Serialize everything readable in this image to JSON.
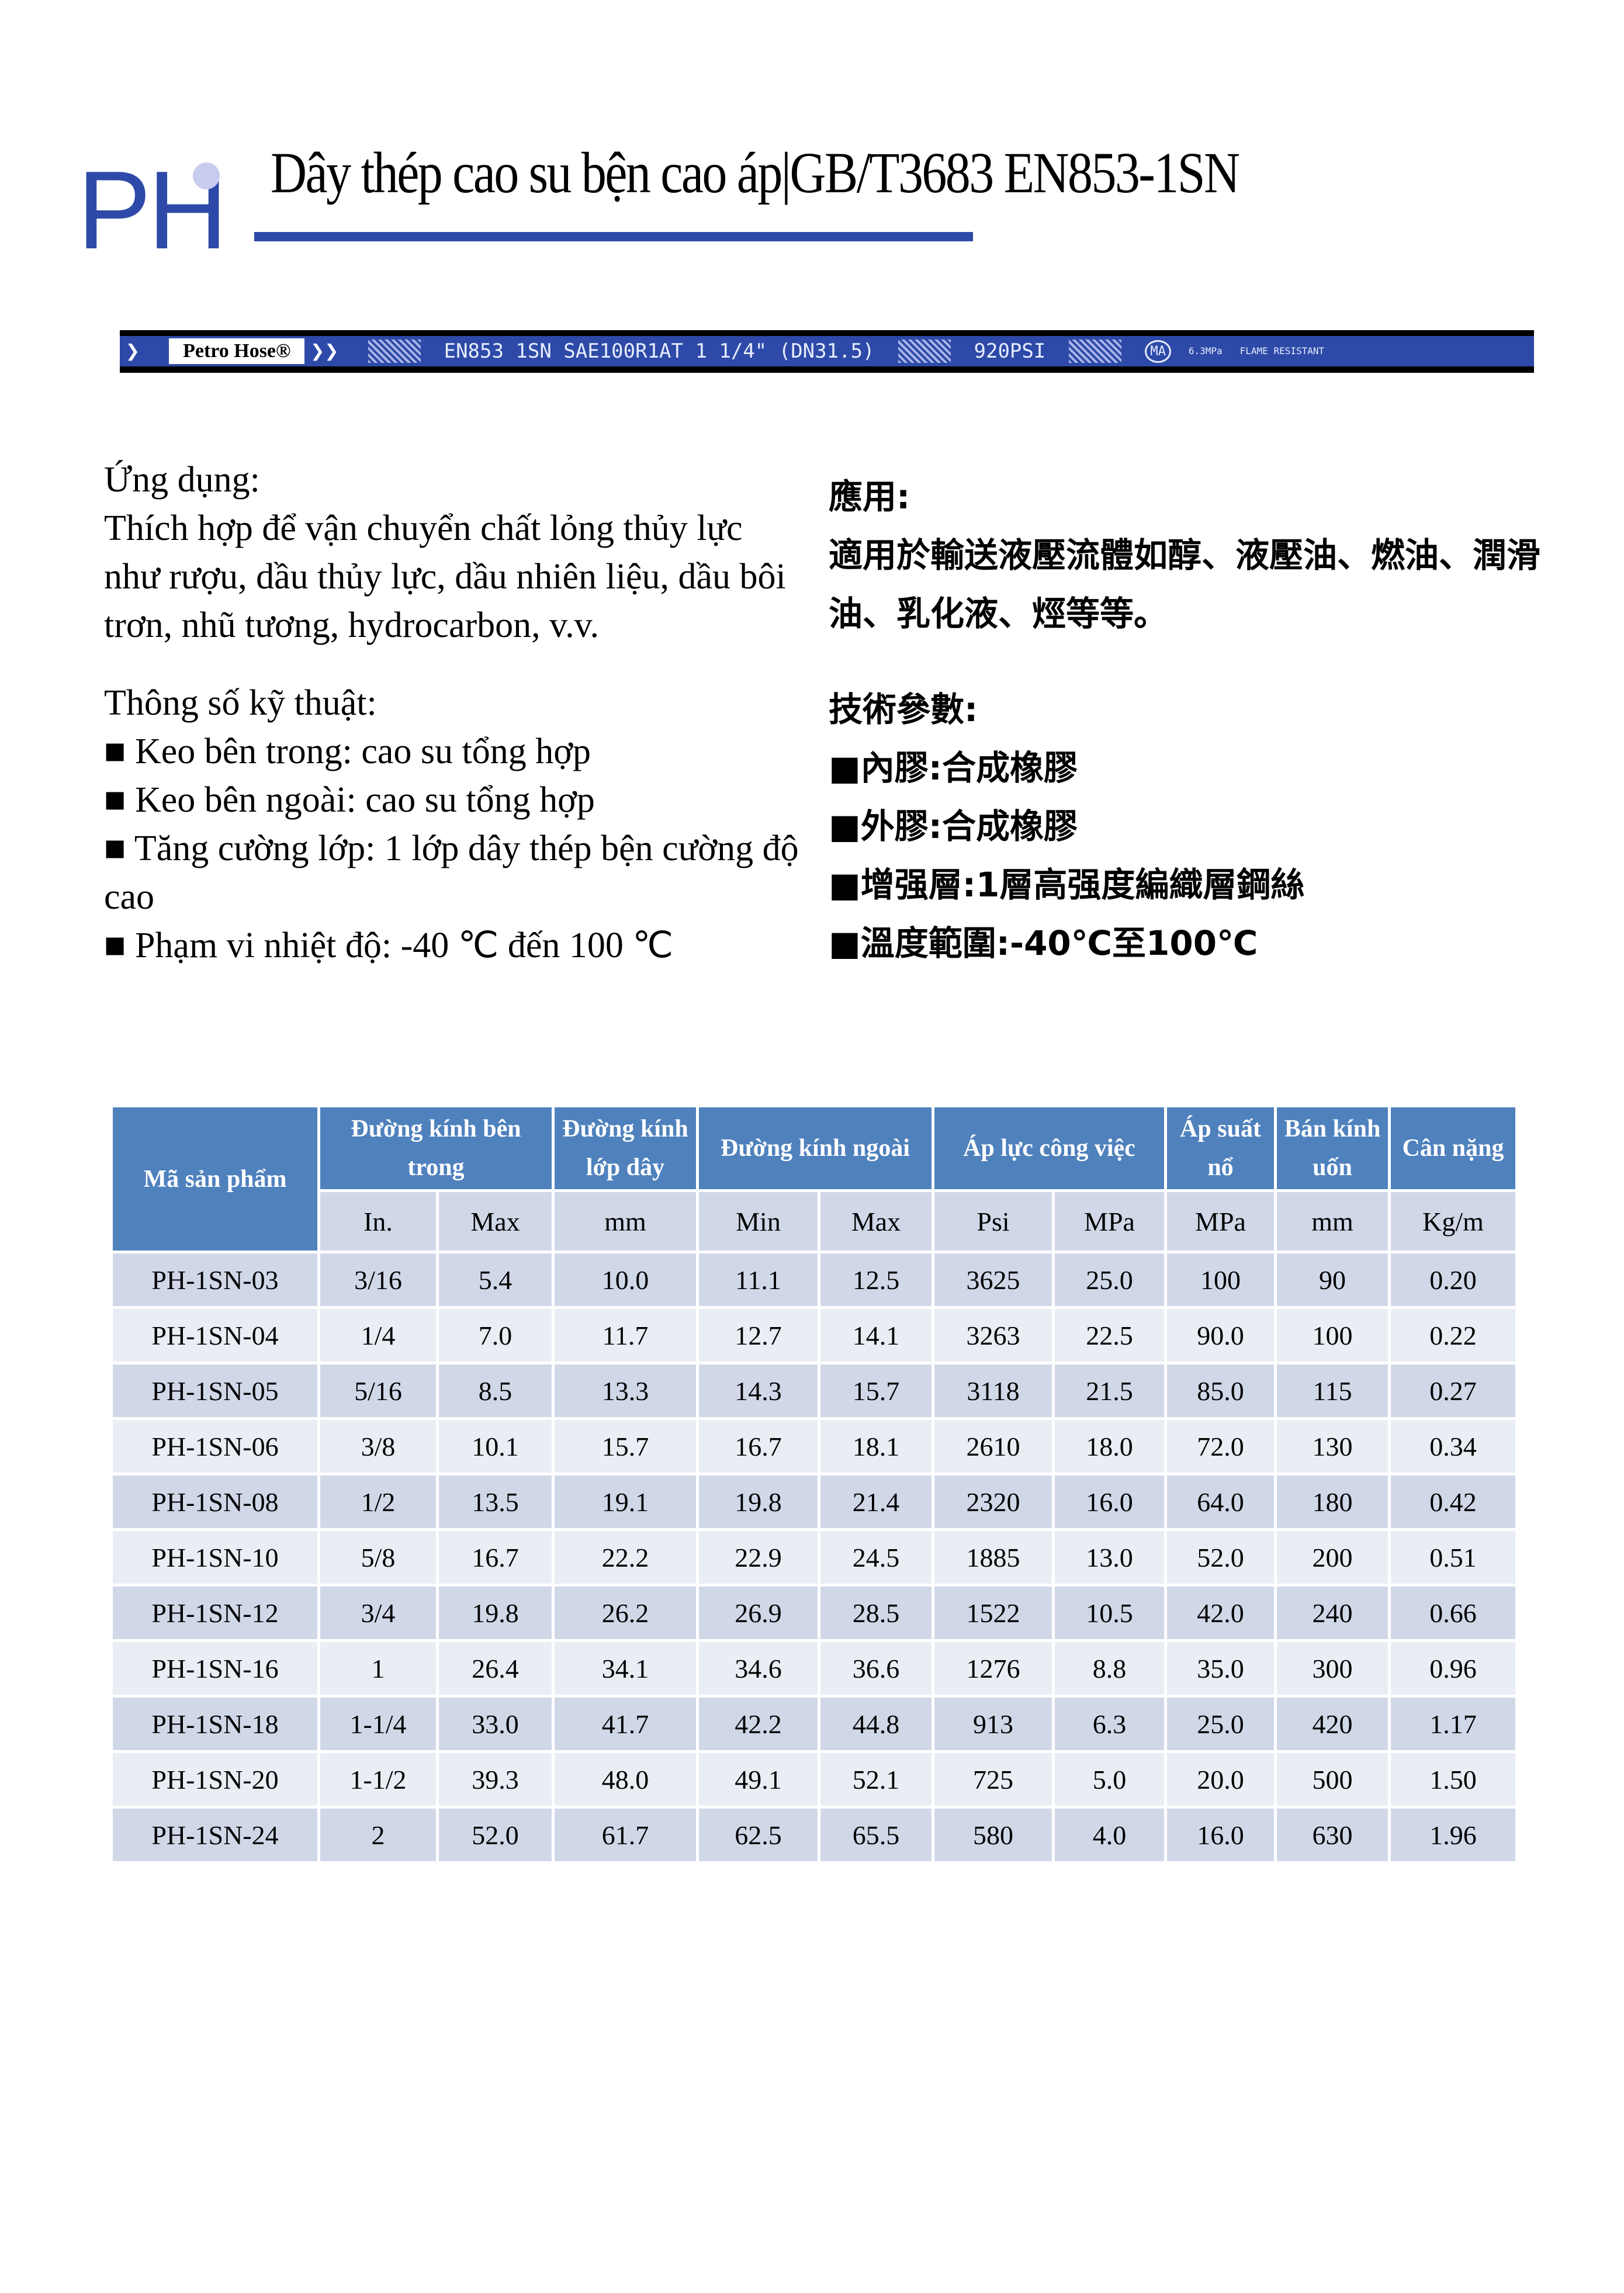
{
  "logo": "PH",
  "title": "Dây thép cao su bện cao áp|GB/T3683 EN853-1SN",
  "banner": {
    "brand": "Petro Hose®",
    "spec": "EN853 1SN SAE100R1AT 1 1/4\" (DN31.5)",
    "psi": "920PSI",
    "mark": "MA",
    "small1": "6.3MPa",
    "small2": "FLAME RESISTANT"
  },
  "left": {
    "app_title": "Ứng dụng:",
    "app_text": "Thích hợp để vận chuyển chất lỏng thủy lực như rượu, dầu thủy lực, dầu nhiên liệu, dầu bôi trơn, nhũ tương, hydrocarbon, v.v.",
    "spec_title": "Thông số kỹ thuật:",
    "specs": [
      "■ Keo bên trong: cao su tổng hợp",
      "■ Keo bên ngoài: cao su tổng hợp",
      "■ Tăng cường lớp: 1 lớp dây thép bện cường độ cao",
      "■ Phạm vi nhiệt độ: -40 ℃ đến 100 ℃"
    ]
  },
  "right": {
    "app_title": "應用:",
    "app_text": "適用於輸送液壓流體如醇、液壓油、燃油、潤滑油、乳化液、烴等等。",
    "spec_title": "技術參數:",
    "specs": [
      "■內膠:合成橡膠",
      "■外膠:合成橡膠",
      "■增强層:1層高强度編織層鋼絲",
      "■溫度範圍:-40℃至100℃"
    ]
  },
  "table": {
    "headers": [
      "Mã sản phẩm",
      "Đường kính bên trong",
      "Đường kính lớp dây",
      "Đường kính ngoài",
      "Áp lực công việc",
      "Áp suất nổ",
      "Bán kính uốn",
      "Cân nặng"
    ],
    "subheaders": [
      "In.",
      "Max",
      "mm",
      "Min",
      "Max",
      "Psi",
      "MPa",
      "MPa",
      "mm",
      "Kg/m"
    ],
    "rows": [
      [
        "PH-1SN-03",
        "3/16",
        "5.4",
        "10.0",
        "11.1",
        "12.5",
        "3625",
        "25.0",
        "100",
        "90",
        "0.20"
      ],
      [
        "PH-1SN-04",
        "1/4",
        "7.0",
        "11.7",
        "12.7",
        "14.1",
        "3263",
        "22.5",
        "90.0",
        "100",
        "0.22"
      ],
      [
        "PH-1SN-05",
        "5/16",
        "8.5",
        "13.3",
        "14.3",
        "15.7",
        "3118",
        "21.5",
        "85.0",
        "115",
        "0.27"
      ],
      [
        "PH-1SN-06",
        "3/8",
        "10.1",
        "15.7",
        "16.7",
        "18.1",
        "2610",
        "18.0",
        "72.0",
        "130",
        "0.34"
      ],
      [
        "PH-1SN-08",
        "1/2",
        "13.5",
        "19.1",
        "19.8",
        "21.4",
        "2320",
        "16.0",
        "64.0",
        "180",
        "0.42"
      ],
      [
        "PH-1SN-10",
        "5/8",
        "16.7",
        "22.2",
        "22.9",
        "24.5",
        "1885",
        "13.0",
        "52.0",
        "200",
        "0.51"
      ],
      [
        "PH-1SN-12",
        "3/4",
        "19.8",
        "26.2",
        "26.9",
        "28.5",
        "1522",
        "10.5",
        "42.0",
        "240",
        "0.66"
      ],
      [
        "PH-1SN-16",
        "1",
        "26.4",
        "34.1",
        "34.6",
        "36.6",
        "1276",
        "8.8",
        "35.0",
        "300",
        "0.96"
      ],
      [
        "PH-1SN-18",
        "1-1/4",
        "33.0",
        "41.7",
        "42.2",
        "44.8",
        "913",
        "6.3",
        "25.0",
        "420",
        "1.17"
      ],
      [
        "PH-1SN-20",
        "1-1/2",
        "39.3",
        "48.0",
        "49.1",
        "52.1",
        "725",
        "5.0",
        "20.0",
        "500",
        "1.50"
      ],
      [
        "PH-1SN-24",
        "2",
        "52.0",
        "61.7",
        "62.5",
        "65.5",
        "580",
        "4.0",
        "16.0",
        "630",
        "1.96"
      ]
    ]
  },
  "colors": {
    "brand": "#2e4aa8",
    "header": "#4f81bd",
    "row_a": "#d0d8e8",
    "row_b": "#e9edf4"
  }
}
